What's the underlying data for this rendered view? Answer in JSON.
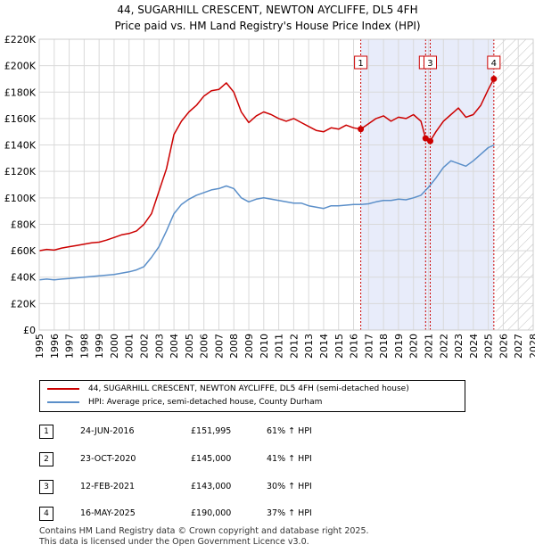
{
  "title_line1": "44, SUGARHILL CRESCENT, NEWTON AYCLIFFE, DL5 4FH",
  "title_line2": "Price paid vs. HM Land Registry's House Price Index (HPI)",
  "chart_data": {
    "type": "line",
    "xlabel": "",
    "ylabel": "",
    "xlim": [
      1995,
      2028
    ],
    "ylim": [
      0,
      220000
    ],
    "y_ticks": [
      0,
      20000,
      40000,
      60000,
      80000,
      100000,
      120000,
      140000,
      160000,
      180000,
      200000,
      220000
    ],
    "y_tick_labels": [
      "£0",
      "£20K",
      "£40K",
      "£60K",
      "£80K",
      "£100K",
      "£120K",
      "£140K",
      "£160K",
      "£180K",
      "£200K",
      "£220K"
    ],
    "x_ticks": [
      1995,
      1996,
      1997,
      1998,
      1999,
      2000,
      2001,
      2002,
      2003,
      2004,
      2005,
      2006,
      2007,
      2008,
      2009,
      2010,
      2011,
      2012,
      2013,
      2014,
      2015,
      2016,
      2017,
      2018,
      2019,
      2020,
      2021,
      2022,
      2023,
      2024,
      2025,
      2026,
      2027,
      2028
    ],
    "shaded_period": [
      2016.48,
      2025.37
    ],
    "projection_start": 2025.5,
    "series": [
      {
        "name": "44, SUGARHILL CRESCENT, NEWTON AYCLIFFE, DL5 4FH (semi-detached house)",
        "color": "#cc0000",
        "x": [
          1995.0,
          1995.5,
          1996.0,
          1996.5,
          1997.0,
          1997.5,
          1998.0,
          1998.5,
          1999.0,
          1999.5,
          2000.0,
          2000.5,
          2001.0,
          2001.5,
          2002.0,
          2002.5,
          2003.0,
          2003.5,
          2004.0,
          2004.5,
          2005.0,
          2005.5,
          2006.0,
          2006.5,
          2007.0,
          2007.5,
          2008.0,
          2008.5,
          2009.0,
          2009.5,
          2010.0,
          2010.5,
          2011.0,
          2011.5,
          2012.0,
          2012.5,
          2013.0,
          2013.5,
          2014.0,
          2014.5,
          2015.0,
          2015.5,
          2016.0,
          2016.48,
          2017.0,
          2017.5,
          2018.0,
          2018.5,
          2019.0,
          2019.5,
          2020.0,
          2020.5,
          2020.81,
          2021.12,
          2021.5,
          2022.0,
          2022.5,
          2023.0,
          2023.5,
          2024.0,
          2024.5,
          2025.0,
          2025.37
        ],
        "values": [
          60000,
          61000,
          60500,
          62000,
          63000,
          64000,
          65000,
          66000,
          66500,
          68000,
          70000,
          72000,
          73000,
          75000,
          80000,
          88000,
          105000,
          122000,
          148000,
          158000,
          165000,
          170000,
          177000,
          181000,
          182000,
          187000,
          180000,
          165000,
          157000,
          162000,
          165000,
          163000,
          160000,
          158000,
          160000,
          157000,
          154000,
          151000,
          150000,
          153000,
          152000,
          155000,
          153000,
          151995,
          156000,
          160000,
          162000,
          158000,
          161000,
          160000,
          163000,
          158000,
          145000,
          143000,
          150000,
          158000,
          163000,
          168000,
          161000,
          163000,
          170000,
          182000,
          190000
        ]
      },
      {
        "name": "HPI: Average price, semi-detached house, County Durham",
        "color": "#5b8fc9",
        "x": [
          1995.0,
          1995.5,
          1996.0,
          1996.5,
          1997.0,
          1997.5,
          1998.0,
          1998.5,
          1999.0,
          1999.5,
          2000.0,
          2000.5,
          2001.0,
          2001.5,
          2002.0,
          2002.5,
          2003.0,
          2003.5,
          2004.0,
          2004.5,
          2005.0,
          2005.5,
          2006.0,
          2006.5,
          2007.0,
          2007.5,
          2008.0,
          2008.5,
          2009.0,
          2009.5,
          2010.0,
          2010.5,
          2011.0,
          2011.5,
          2012.0,
          2012.5,
          2013.0,
          2013.5,
          2014.0,
          2014.5,
          2015.0,
          2015.5,
          2016.0,
          2016.5,
          2017.0,
          2017.5,
          2018.0,
          2018.5,
          2019.0,
          2019.5,
          2020.0,
          2020.5,
          2021.0,
          2021.5,
          2022.0,
          2022.5,
          2023.0,
          2023.5,
          2024.0,
          2024.5,
          2025.0,
          2025.4
        ],
        "values": [
          38000,
          38500,
          38000,
          38500,
          39000,
          39500,
          40000,
          40500,
          41000,
          41500,
          42000,
          43000,
          44000,
          45500,
          48000,
          55000,
          63000,
          75000,
          88000,
          95000,
          99000,
          102000,
          104000,
          106000,
          107000,
          109000,
          107000,
          100000,
          97000,
          99000,
          100000,
          99000,
          98000,
          97000,
          96000,
          96000,
          94000,
          93000,
          92000,
          94000,
          94000,
          94500,
          95000,
          95000,
          95500,
          97000,
          98000,
          98000,
          99000,
          98500,
          100000,
          102000,
          108000,
          115000,
          123000,
          128000,
          126000,
          124000,
          128000,
          133000,
          138000,
          140000
        ]
      }
    ],
    "markers": [
      {
        "label": "1",
        "x": 2016.48,
        "y": 151995
      },
      {
        "label": "2",
        "x": 2020.81,
        "y": 145000
      },
      {
        "label": "3",
        "x": 2021.12,
        "y": 143000
      },
      {
        "label": "4",
        "x": 2025.37,
        "y": 190000
      }
    ],
    "sale_vlines": [
      2016.48,
      2020.81,
      2021.12,
      2025.37
    ]
  },
  "legend": {
    "items": [
      {
        "label": "44, SUGARHILL CRESCENT, NEWTON AYCLIFFE, DL5 4FH (semi-detached house)",
        "color": "#cc0000"
      },
      {
        "label": "HPI: Average price, semi-detached house, County Durham",
        "color": "#5b8fc9"
      }
    ]
  },
  "transactions": [
    {
      "num": "1",
      "date": "24-JUN-2016",
      "price": "£151,995",
      "hpi": "61% ↑ HPI"
    },
    {
      "num": "2",
      "date": "23-OCT-2020",
      "price": "£145,000",
      "hpi": "41% ↑ HPI"
    },
    {
      "num": "3",
      "date": "12-FEB-2021",
      "price": "£143,000",
      "hpi": "30% ↑ HPI"
    },
    {
      "num": "4",
      "date": "16-MAY-2025",
      "price": "£190,000",
      "hpi": "37% ↑ HPI"
    }
  ],
  "footer_line1": "Contains HM Land Registry data © Crown copyright and database right 2025.",
  "footer_line2": "This data is licensed under the Open Government Licence v3.0."
}
